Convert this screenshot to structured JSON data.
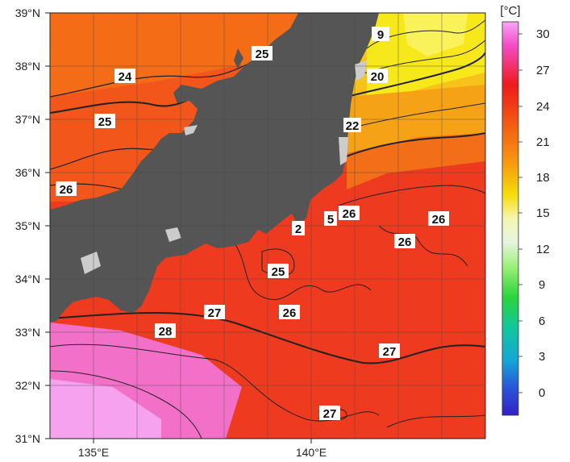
{
  "map": {
    "lat_labels": [
      "39°N",
      "38°N",
      "37°N",
      "36°N",
      "35°N",
      "34°N",
      "33°N",
      "32°N",
      "31°N"
    ],
    "lon_labels": [
      "135°E",
      "140°E"
    ],
    "contour_labels": [
      "9",
      "25",
      "24",
      "20",
      "25",
      "22",
      "26",
      "26",
      "26",
      "26",
      "2",
      "5",
      "27",
      "25",
      "26",
      "28",
      "27",
      "27"
    ]
  },
  "colorbar": {
    "unit": "[°C]",
    "ticks": [
      "30",
      "27",
      "24",
      "21",
      "18",
      "15",
      "12",
      "9",
      "6",
      "3",
      "0"
    ]
  },
  "colors": {
    "land": "#555555",
    "ice_gap": "#cccccc",
    "sst_27": "#ee2e1c",
    "sst_24": "#f36a16",
    "sst_20": "#f5ee0a",
    "sst_29": "#f79ff5"
  }
}
